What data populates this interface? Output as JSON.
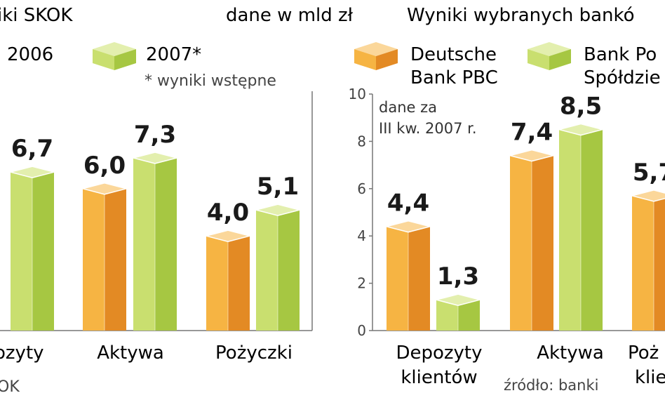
{
  "header": {
    "left_title": "iki SKOK",
    "center_note": "dane w mld zł",
    "right_title": "Wyniki wybranych bankó"
  },
  "colors": {
    "orange_light": "#f6b443",
    "orange_dark": "#e38a24",
    "orange_top": "#fbd79a",
    "green_light": "#c9df6f",
    "green_dark": "#a6c742",
    "green_top": "#e3efae",
    "axis": "#777777"
  },
  "chart_data": [
    {
      "type": "bar",
      "title": "iki SKOK",
      "categories": [
        "ozyty",
        "Aktywa",
        "Pożyczki"
      ],
      "series": [
        {
          "name": "2006",
          "values": [
            null,
            6.0,
            4.0
          ],
          "visible_labels": [
            "",
            "6,0",
            "4,0"
          ]
        },
        {
          "name": "2007*",
          "values": [
            6.7,
            7.3,
            5.1
          ],
          "visible_labels": [
            "6,7",
            "7,3",
            "5,1"
          ]
        }
      ],
      "footnote": "* wyniki wstępne",
      "source": "OK",
      "ylim": [
        0,
        10
      ]
    },
    {
      "type": "bar",
      "title": "Wyniki wybranych bankó",
      "categories": [
        "Depozyty klientów",
        "Aktywa",
        "Poż klie"
      ],
      "series": [
        {
          "name": "Deutsche Bank PBC",
          "values": [
            4.4,
            7.4,
            5.7
          ],
          "visible_labels": [
            "4,4",
            "7,4",
            "5,7"
          ]
        },
        {
          "name": "Bank Po Spółdzie",
          "values": [
            1.3,
            8.5,
            null
          ],
          "visible_labels": [
            "1,3",
            "8,5",
            ""
          ]
        }
      ],
      "note": "dane za III kw. 2007 r.",
      "yticks": [
        "0",
        "2",
        "4",
        "6",
        "8",
        "10"
      ],
      "ylim": [
        0,
        10
      ],
      "source": "źródło: banki"
    }
  ]
}
